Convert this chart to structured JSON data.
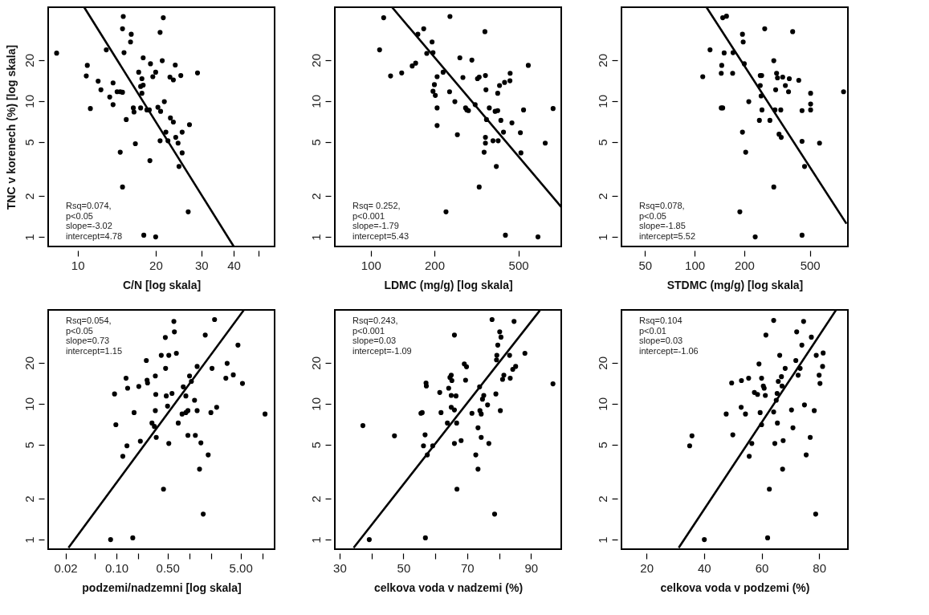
{
  "chart_data": [
    {
      "type": "scatter",
      "ylabel": "TNC v korenech (%) [log skala]",
      "xlabel": "C/N [log skala]",
      "log": "xy",
      "line_style": "solid",
      "grid": false,
      "xlim": [
        7.7,
        57.5
      ],
      "ylim": [
        0.85,
        49
      ],
      "xticks": [
        10,
        20,
        30,
        40,
        {
          "value": 50,
          "label": null
        }
      ],
      "yticks": [
        1,
        2,
        5,
        10,
        20
      ],
      "annotations": [
        "Rsq=0.074,",
        "p<0.05",
        "slope=-3.02",
        "intercept=4.78"
      ],
      "series": [
        {
          "type": "scatter",
          "marker": "circle",
          "color": "#000000",
          "x": [
            8.3,
            10.9,
            10.8,
            11.2,
            12.0,
            12.3,
            12.9,
            13.3,
            13.7,
            13.7,
            14.2,
            14.6,
            14.9,
            14.6,
            14.9,
            15.0,
            14.9,
            15.1,
            15.4,
            16.1,
            16.0,
            16.4,
            16.5,
            16.7,
            17.2,
            17.7,
            17.5,
            17.9,
            17.7,
            17.5,
            17.9,
            18.0,
            18.5,
            19.0,
            19.1,
            18.9,
            19.5,
            20.0,
            20.0,
            20.4,
            20.8,
            21.4,
            21.2,
            20.9,
            21.6,
            21.9,
            20.8,
            22.3,
            22.7,
            22.8,
            23.4,
            23.4,
            23.8,
            23.9,
            24.4,
            25.0,
            24.6,
            25.3,
            25.3,
            26.7,
            27.0,
            29.0
          ],
          "values": [
            22.5,
            18.3,
            15.3,
            8.8,
            14.0,
            12.1,
            23.8,
            10.7,
            13.6,
            9.4,
            11.7,
            11.7,
            11.6,
            4.2,
            2.33,
            41.9,
            34.0,
            22.7,
            7.3,
            31.0,
            27.2,
            8.9,
            8.3,
            4.85,
            16.3,
            14.6,
            12.8,
            13.1,
            11.4,
            8.9,
            20.8,
            1.03,
            8.6,
            3.64,
            18.8,
            8.6,
            15.1,
            1.0,
            16.3,
            9.0,
            32.0,
            41.0,
            19.8,
            8.4,
            9.9,
            5.9,
            5.1,
            5.1,
            15.0,
            7.5,
            7.0,
            14.3,
            18.4,
            5.4,
            4.9,
            15.4,
            3.3,
            4.15,
            5.9,
            1.53,
            6.7,
            16.1
          ]
        },
        {
          "type": "line",
          "color": "#000000",
          "x": [
            10.6,
            40
          ],
          "values": [
            49,
            0.85
          ]
        }
      ]
    },
    {
      "type": "scatter",
      "xlabel": "LDMC (mg/g) [log skala]",
      "log": "xy",
      "line_style": "solid",
      "grid": false,
      "xlim": [
        67.5,
        798
      ],
      "ylim": [
        0.85,
        49
      ],
      "xticks": [
        100,
        200,
        500
      ],
      "yticks": [
        1,
        2,
        5,
        10,
        20
      ],
      "annotations": [
        "Rsq= 0.252,",
        "p<0.001",
        "slope=-1.79",
        "intercept=5.43"
      ],
      "series": [
        {
          "type": "scatter",
          "marker": "circle",
          "color": "#000000",
          "x": [
            115,
            110,
            124,
            140,
            157,
            163,
            167,
            178,
            184,
            195,
            197,
            200,
            206,
            197,
            202,
            206,
            206,
            220,
            227,
            237,
            236,
            250,
            257,
            264,
            273,
            281,
            285,
            290,
            301,
            312,
            320,
            326,
            326,
            347,
            349,
            351,
            353,
            349,
            349,
            344,
            364,
            379,
            388,
            393,
            399,
            399,
            401,
            407,
            413,
            425,
            430,
            434,
            456,
            457,
            466,
            511,
            514,
            529,
            557,
            619,
            670,
            730
          ],
          "values": [
            41,
            23.8,
            15.3,
            16.1,
            18.1,
            19.0,
            31,
            34,
            22.4,
            27.2,
            22.7,
            13.2,
            15.1,
            11.8,
            11.0,
            8.9,
            6.6,
            16.3,
            1.53,
            41.9,
            11.7,
            9.9,
            5.65,
            20.8,
            14.9,
            8.9,
            8.6,
            8.5,
            20.0,
            9.4,
            14.6,
            15.0,
            2.33,
            32.4,
            15.4,
            12.1,
            7.3,
            5.4,
            4.9,
            4.2,
            8.9,
            5.1,
            8.4,
            3.3,
            8.5,
            11.4,
            5.1,
            13.0,
            7.2,
            5.9,
            13.7,
            1.03,
            14.1,
            16.0,
            6.9,
            5.85,
            4.15,
            8.6,
            18.3,
            1.0,
            4.9,
            8.8
          ]
        },
        {
          "type": "line",
          "color": "#000000",
          "x": [
            126,
            798
          ],
          "values": [
            49,
            1.66
          ]
        }
      ]
    },
    {
      "type": "scatter",
      "xlabel": "STDMC (mg/g) [log skala]",
      "log": "xy",
      "line_style": "solid",
      "grid": false,
      "xlim": [
        36,
        850
      ],
      "ylim": [
        0.85,
        49
      ],
      "xticks": [
        50,
        100,
        200,
        500
      ],
      "yticks": [
        1,
        2,
        5,
        10,
        20
      ],
      "annotations": [
        "Rsq=0.078,",
        "p<0.05",
        "slope=-1.85",
        "intercept=5.52"
      ],
      "series": [
        {
          "type": "scatter",
          "marker": "circle",
          "color": "#000000",
          "x": [
            112,
            124,
            148,
            156,
            145,
            148,
            146,
            145,
            151,
            170,
            171,
            195,
            197,
            200,
            195,
            188,
            204,
            213,
            233,
            247,
            250,
            255,
            250,
            253,
            256,
            266,
            286,
            302,
            302,
            307,
            310,
            314,
            318,
            325,
            333,
            335,
            342,
            355,
            371,
            375,
            393,
            428,
            448,
            448,
            448,
            464,
            505,
            505,
            505,
            572,
            800
          ],
          "values": [
            15.1,
            23.8,
            41,
            42.1,
            8.9,
            8.9,
            18.3,
            16.0,
            22.6,
            16.0,
            22.7,
            31,
            27.2,
            18.8,
            5.9,
            1.53,
            4.2,
            9.9,
            1.0,
            7.2,
            15.4,
            15.4,
            13.0,
            10.9,
            8.6,
            34,
            7.2,
            19.8,
            2.33,
            8.6,
            12.1,
            16.0,
            14.8,
            5.7,
            8.6,
            5.4,
            15.0,
            13.0,
            11.7,
            14.6,
            32.4,
            14.2,
            1.03,
            8.5,
            5.05,
            3.3,
            11.4,
            9.5,
            8.6,
            4.9,
            11.7
          ]
        },
        {
          "type": "line",
          "color": "#000000",
          "x": [
            118,
            833
          ],
          "values": [
            49,
            1.25
          ]
        }
      ]
    },
    {
      "type": "scatter",
      "xlabel": "podzemi/nadzemni [log skala]",
      "log": "xy",
      "line_style": "solid",
      "grid": false,
      "xlim": [
        0.0116,
        14.6
      ],
      "ylim": [
        0.85,
        49
      ],
      "xticks": [
        {
          "value": 0.02,
          "label": "0.02"
        },
        {
          "value": 0.05,
          "label": null
        },
        {
          "value": 0.1,
          "label": "0.10"
        },
        {
          "value": 0.2,
          "label": null
        },
        {
          "value": 0.5,
          "label": "0.50"
        },
        {
          "value": 1,
          "label": null
        },
        {
          "value": 2,
          "label": null
        },
        {
          "value": 5,
          "label": "5.00"
        },
        {
          "value": 10,
          "label": null
        }
      ],
      "yticks": [
        1,
        2,
        5,
        10,
        20
      ],
      "annotations": [
        "Rsq=0.054,",
        "p<0.05",
        "slope=0.73",
        "intercept=1.15"
      ],
      "series": [
        {
          "type": "scatter",
          "marker": "circle",
          "color": "#000000",
          "x": [
            0.083,
            0.167,
            0.094,
            0.098,
            0.122,
            0.139,
            0.135,
            0.142,
            0.174,
            0.202,
            0.212,
            0.256,
            0.262,
            0.266,
            0.306,
            0.34,
            0.345,
            0.34,
            0.33,
            0.35,
            0.41,
            0.44,
            0.466,
            0.47,
            0.48,
            0.5,
            0.52,
            0.52,
            0.575,
            0.61,
            0.62,
            0.66,
            0.7,
            0.82,
            0.79,
            0.89,
            0.89,
            0.95,
            0.95,
            1.0,
            1.06,
            1.17,
            1.2,
            1.27,
            1.27,
            1.37,
            1.43,
            1.54,
            1.64,
            1.8,
            1.96,
            2.03,
            2.2,
            2.35,
            3.14,
            3.27,
            3.97,
            4.6,
            5.3,
            10.8
          ],
          "values": [
            1.0,
            1.03,
            11.8,
            7.0,
            4.1,
            4.9,
            15.4,
            13.0,
            8.6,
            13.4,
            5.3,
            20.8,
            14.9,
            14.2,
            7.2,
            16.0,
            11.7,
            8.9,
            6.8,
            5.65,
            22.7,
            2.35,
            30.7,
            18.2,
            11.4,
            9.6,
            5.1,
            22.7,
            11.9,
            40.3,
            33.8,
            23.5,
            7.2,
            13.3,
            8.4,
            11.4,
            8.6,
            8.9,
            5.85,
            16.0,
            14.6,
            10.6,
            5.85,
            18.8,
            8.9,
            3.3,
            5.15,
            1.54,
            32.0,
            4.2,
            8.6,
            18.2,
            41.6,
            9.4,
            15.4,
            19.8,
            16.3,
            27.0,
            14.1,
            8.4
          ]
        },
        {
          "type": "line",
          "color": "#000000",
          "x": [
            0.022,
            5.5
          ],
          "values": [
            0.87,
            48.6
          ]
        }
      ]
    },
    {
      "type": "scatter",
      "xlabel": "celkova voda v nadzemi (%)",
      "log": "y",
      "line_style": "solid",
      "grid": false,
      "xlim": [
        28.5,
        99.5
      ],
      "ylim": [
        0.85,
        49
      ],
      "xticks": [
        30,
        {
          "value": 40,
          "label": null
        },
        50,
        {
          "value": 60,
          "label": null
        },
        70,
        {
          "value": 80,
          "label": null
        },
        90
      ],
      "yticks": [
        1,
        2,
        5,
        10,
        20
      ],
      "annotations": [
        "Rsq=0.243,",
        "p<0.001",
        "slope=0.03",
        "intercept=-1.09"
      ],
      "series": [
        {
          "type": "scatter",
          "marker": "circle",
          "color": "#000000",
          "x": [
            37.3,
            39.3,
            47.2,
            55.5,
            55.9,
            56.3,
            56.8,
            56.9,
            57.1,
            57.2,
            57.5,
            59.2,
            61.4,
            61.8,
            63.8,
            64.2,
            64.6,
            65.0,
            65.2,
            65.0,
            65.0,
            66.0,
            66.0,
            66.5,
            66.7,
            66.0,
            66.8,
            68.1,
            69.1,
            69.8,
            69.5,
            71.5,
            73.4,
            72.7,
            73.4,
            73.9,
            74.0,
            74.4,
            74.4,
            74.8,
            75.2,
            76.4,
            76.8,
            77.8,
            78.6,
            79.0,
            79.2,
            79.3,
            79.6,
            80.2,
            80.6,
            80.4,
            81.1,
            81.5,
            83.3,
            83.5,
            84.3,
            84.7,
            85.2,
            88.1,
            96.9
          ],
          "values": [
            6.9,
            1.0,
            5.8,
            8.5,
            8.6,
            4.9,
            5.9,
            1.03,
            14.2,
            13.5,
            4.2,
            4.9,
            12.1,
            8.6,
            7.2,
            13.0,
            15.6,
            16.2,
            14.8,
            11.5,
            9.4,
            9.0,
            5.1,
            11.4,
            7.2,
            32.0,
            2.35,
            5.35,
            19.6,
            18.7,
            14.9,
            8.5,
            6.65,
            4.2,
            3.3,
            13.3,
            8.9,
            8.4,
            5.65,
            10.8,
            11.5,
            9.8,
            5.1,
            41.6,
            1.54,
            11.8,
            21.0,
            22.7,
            27.0,
            33.8,
            30.9,
            8.9,
            15.1,
            16.2,
            22.7,
            15.4,
            17.9,
            40.3,
            18.8,
            23.5,
            14.0
          ]
        },
        {
          "type": "line",
          "color": "#000000",
          "x": [
            34.4,
            92.8
          ],
          "values": [
            0.87,
            48.6
          ]
        }
      ]
    },
    {
      "type": "scatter",
      "xlabel": "celkova voda v podzemi (%)",
      "log": "y",
      "line_style": "solid",
      "grid": false,
      "xlim": [
        11.3,
        90
      ],
      "ylim": [
        0.85,
        49
      ],
      "xticks": [
        20,
        40,
        60,
        80
      ],
      "yticks": [
        1,
        2,
        5,
        10,
        20
      ],
      "annotations": [
        "Rsq=0.104",
        "p<0.01",
        "slope=0.03",
        "intercept=-1.06"
      ],
      "series": [
        {
          "type": "scatter",
          "marker": "circle",
          "color": "#000000",
          "x": [
            35.0,
            35.8,
            40.1,
            47.7,
            49.6,
            50.0,
            52.9,
            53.0,
            54.4,
            55.5,
            55.7,
            56.6,
            57.5,
            58.6,
            59.1,
            59.5,
            60.0,
            60.0,
            60.6,
            60.9,
            61.3,
            61.5,
            62.1,
            62.7,
            64.2,
            64.2,
            64.6,
            65.1,
            65.4,
            65.5,
            65.8,
            66.3,
            66.9,
            67.1,
            67.3,
            67.5,
            68.2,
            70.4,
            70.9,
            71.9,
            72.2,
            72.7,
            73.4,
            74.0,
            74.6,
            74.9,
            75.5,
            76.9,
            77.3,
            78.3,
            78.8,
            79.0,
            80.0,
            80.3,
            81.2,
            81.4
          ],
          "values": [
            4.9,
            5.8,
            1.0,
            8.4,
            14.2,
            5.9,
            9.4,
            14.8,
            8.4,
            15.4,
            4.1,
            5.1,
            12.1,
            11.7,
            19.6,
            8.6,
            15.4,
            7.0,
            13.5,
            13.0,
            11.5,
            32.0,
            1.03,
            2.35,
            41.0,
            8.7,
            5.1,
            10.6,
            11.9,
            7.2,
            14.6,
            22.7,
            15.8,
            13.5,
            3.3,
            5.35,
            18.2,
            9.0,
            6.65,
            20.8,
            33.8,
            16.2,
            18.2,
            27.0,
            40.3,
            9.8,
            4.2,
            5.65,
            30.9,
            8.9,
            1.54,
            22.7,
            16.2,
            14.1,
            18.8,
            23.6
          ]
        },
        {
          "type": "line",
          "color": "#000000",
          "x": [
            31.2,
            85.8
          ],
          "values": [
            0.87,
            48.6
          ]
        }
      ]
    }
  ]
}
